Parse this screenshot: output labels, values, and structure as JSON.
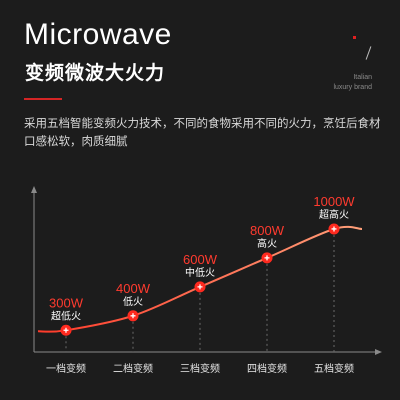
{
  "header": {
    "title": "Microwave",
    "subtitle": "变频微波大火力",
    "brand_line1": "Italian",
    "brand_line2": "luxury brand"
  },
  "description": "采用五档智能变频火力技术，不同的食物采用不同的火力，烹饪后食材口感松软，肉质细腻",
  "colors": {
    "background": "#1c1c1c",
    "accent": "#e02020",
    "curve_start": "#ff3a2a",
    "curve_end": "#ffa07a",
    "value_text": "#ff3b2f"
  },
  "chart_data": {
    "type": "line",
    "title": "",
    "xlabel": "",
    "ylabel": "",
    "categories": [
      "一档变频",
      "二档变频",
      "三档变频",
      "四档变频",
      "五档变频"
    ],
    "values": [
      300,
      400,
      600,
      800,
      1000
    ],
    "value_labels": [
      "300W",
      "400W",
      "600W",
      "800W",
      "1000W"
    ],
    "point_labels": [
      "超低火",
      "低火",
      "中低火",
      "高火",
      "超高火"
    ],
    "ylim": [
      150,
      1200
    ],
    "grid": false,
    "legend": "none"
  }
}
